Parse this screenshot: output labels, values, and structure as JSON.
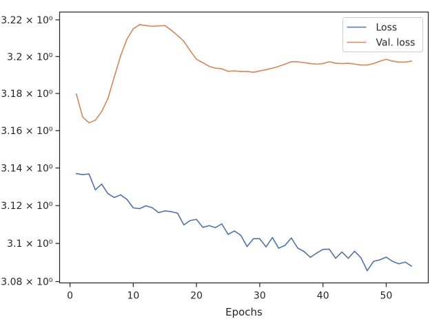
{
  "chart_data": {
    "type": "line",
    "title": "",
    "xlabel": "Epochs",
    "ylabel": "",
    "yscale": "log",
    "xlim": [
      -1.65,
      56.65
    ],
    "ylim": [
      3.0793,
      3.2243
    ],
    "grid": false,
    "legend_position": "top-right",
    "x_ticks": [
      {
        "value": 0,
        "label": "0"
      },
      {
        "value": 10,
        "label": "10"
      },
      {
        "value": 20,
        "label": "20"
      },
      {
        "value": 30,
        "label": "30"
      },
      {
        "value": 40,
        "label": "40"
      },
      {
        "value": 50,
        "label": "50"
      }
    ],
    "y_ticks": [
      {
        "value": 3.08,
        "label": "3.08 × 10⁰"
      },
      {
        "value": 3.1,
        "label": "3.1 × 10⁰"
      },
      {
        "value": 3.12,
        "label": "3.12 × 10⁰"
      },
      {
        "value": 3.14,
        "label": "3.14 × 10⁰"
      },
      {
        "value": 3.16,
        "label": "3.16 × 10⁰"
      },
      {
        "value": 3.18,
        "label": "3.18 × 10⁰"
      },
      {
        "value": 3.2,
        "label": "3.2 × 10⁰"
      },
      {
        "value": 3.22,
        "label": "3.22 × 10⁰"
      }
    ],
    "x": [
      1,
      2,
      3,
      4,
      5,
      6,
      7,
      8,
      9,
      10,
      11,
      12,
      13,
      14,
      15,
      16,
      17,
      18,
      19,
      20,
      21,
      22,
      23,
      24,
      25,
      26,
      27,
      28,
      29,
      30,
      31,
      32,
      33,
      34,
      35,
      36,
      37,
      38,
      39,
      40,
      41,
      42,
      43,
      44,
      45,
      46,
      47,
      48,
      49,
      50,
      51,
      52,
      53,
      54
    ],
    "series": [
      {
        "name": "Loss",
        "color": "#4c72b0",
        "values": [
          3.137,
          3.1365,
          3.1368,
          3.1284,
          3.1314,
          3.1263,
          3.1243,
          3.1257,
          3.1233,
          3.1188,
          3.1184,
          3.1199,
          3.1189,
          3.1163,
          3.1172,
          3.1168,
          3.116,
          3.1098,
          3.1121,
          3.1127,
          3.1085,
          3.1094,
          3.1084,
          3.1103,
          3.1048,
          3.1066,
          3.1043,
          3.0984,
          3.1025,
          3.1025,
          3.0982,
          3.1031,
          3.0975,
          3.099,
          3.1029,
          3.0976,
          3.0958,
          3.0927,
          3.0949,
          3.0969,
          3.097,
          3.0922,
          3.0955,
          3.0922,
          3.0959,
          3.0925,
          3.0857,
          3.0906,
          3.0914,
          3.0928,
          3.0906,
          3.0893,
          3.0902,
          3.0881
        ]
      },
      {
        "name": "Val. loss",
        "color": "#dd8452",
        "values": [
          3.1797,
          3.1673,
          3.1642,
          3.1656,
          3.1702,
          3.1774,
          3.189,
          3.2004,
          3.2095,
          3.2151,
          3.2174,
          3.2169,
          3.2165,
          3.2167,
          3.2169,
          3.2144,
          3.2115,
          3.2083,
          3.2032,
          3.1985,
          3.1967,
          3.1947,
          3.1937,
          3.1934,
          3.192,
          3.1922,
          3.1919,
          3.1919,
          3.1915,
          3.1922,
          3.1929,
          3.1937,
          3.1947,
          3.1959,
          3.1972,
          3.1972,
          3.1967,
          3.1962,
          3.1959,
          3.1962,
          3.1972,
          3.1964,
          3.1962,
          3.1964,
          3.1959,
          3.1954,
          3.1954,
          3.1962,
          3.1975,
          3.1985,
          3.1975,
          3.197,
          3.197,
          3.1975
        ]
      }
    ]
  }
}
